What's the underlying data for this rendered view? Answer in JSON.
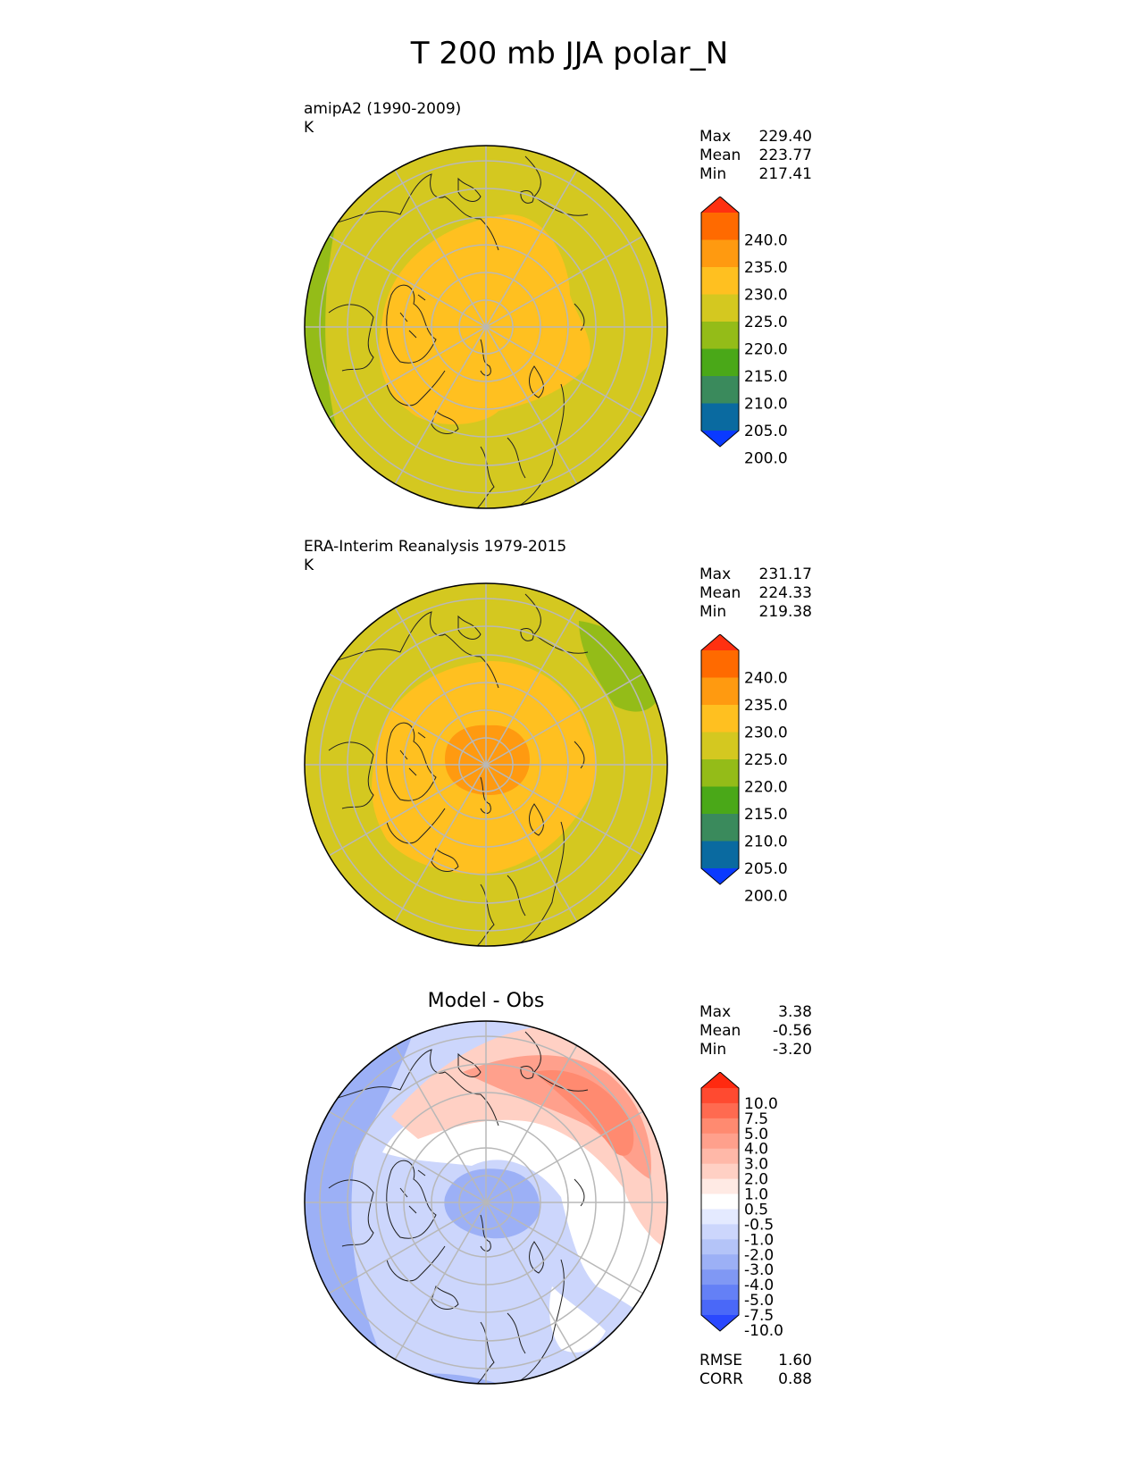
{
  "title": "T 200 mb JJA polar_N",
  "panels": [
    {
      "id": "model",
      "label": "amipA2 (1990-2009)",
      "units": "K",
      "stats": [
        {
          "name": "Max",
          "value": "229.40"
        },
        {
          "name": "Mean",
          "value": "223.77"
        },
        {
          "name": "Min",
          "value": "217.41"
        }
      ]
    },
    {
      "id": "obs",
      "label": "ERA-Interim Reanalysis 1979-2015",
      "units": "K",
      "stats": [
        {
          "name": "Max",
          "value": "231.17"
        },
        {
          "name": "Mean",
          "value": "224.33"
        },
        {
          "name": "Min",
          "value": "219.38"
        }
      ]
    },
    {
      "id": "diff",
      "title": "Model - Obs",
      "stats": [
        {
          "name": "Max",
          "value": "3.38"
        },
        {
          "name": "Mean",
          "value": "-0.56"
        },
        {
          "name": "Min",
          "value": "-3.20"
        }
      ],
      "metrics": [
        {
          "name": "RMSE",
          "value": "1.60"
        },
        {
          "name": "CORR",
          "value": "0.88"
        }
      ]
    }
  ],
  "colorbar_abs": {
    "labels": [
      "240.0",
      "235.0",
      "230.0",
      "225.0",
      "220.0",
      "215.0",
      "210.0",
      "205.0",
      "200.0"
    ],
    "colors_top_to_bottom": [
      "#ff3010",
      "#ff6a00",
      "#ff9a10",
      "#ffc020",
      "#d4c820",
      "#94bc18",
      "#4aa818",
      "#3a8a5c",
      "#0a6aa0",
      "#0a3aff"
    ]
  },
  "colorbar_diff": {
    "labels": [
      "10.0",
      "7.5",
      "5.0",
      "4.0",
      "3.0",
      "2.0",
      "1.0",
      "0.5",
      "-0.5",
      "-1.0",
      "-2.0",
      "-3.0",
      "-4.0",
      "-5.0",
      "-7.5",
      "-10.0"
    ],
    "colors_top_to_bottom": [
      "#ff2a10",
      "#ff4a30",
      "#ff6a50",
      "#ff8a70",
      "#ffa08c",
      "#ffb8a8",
      "#ffd0c4",
      "#ffeae4",
      "#ffffff",
      "#e4eaff",
      "#ccd6fc",
      "#b4c4f8",
      "#9cb0f6",
      "#8098f4",
      "#6480f6",
      "#4a68f8",
      "#2a48ff"
    ]
  },
  "colors": {
    "grid": "#b8b8b8",
    "coast": "#202020",
    "border": "#000000"
  }
}
